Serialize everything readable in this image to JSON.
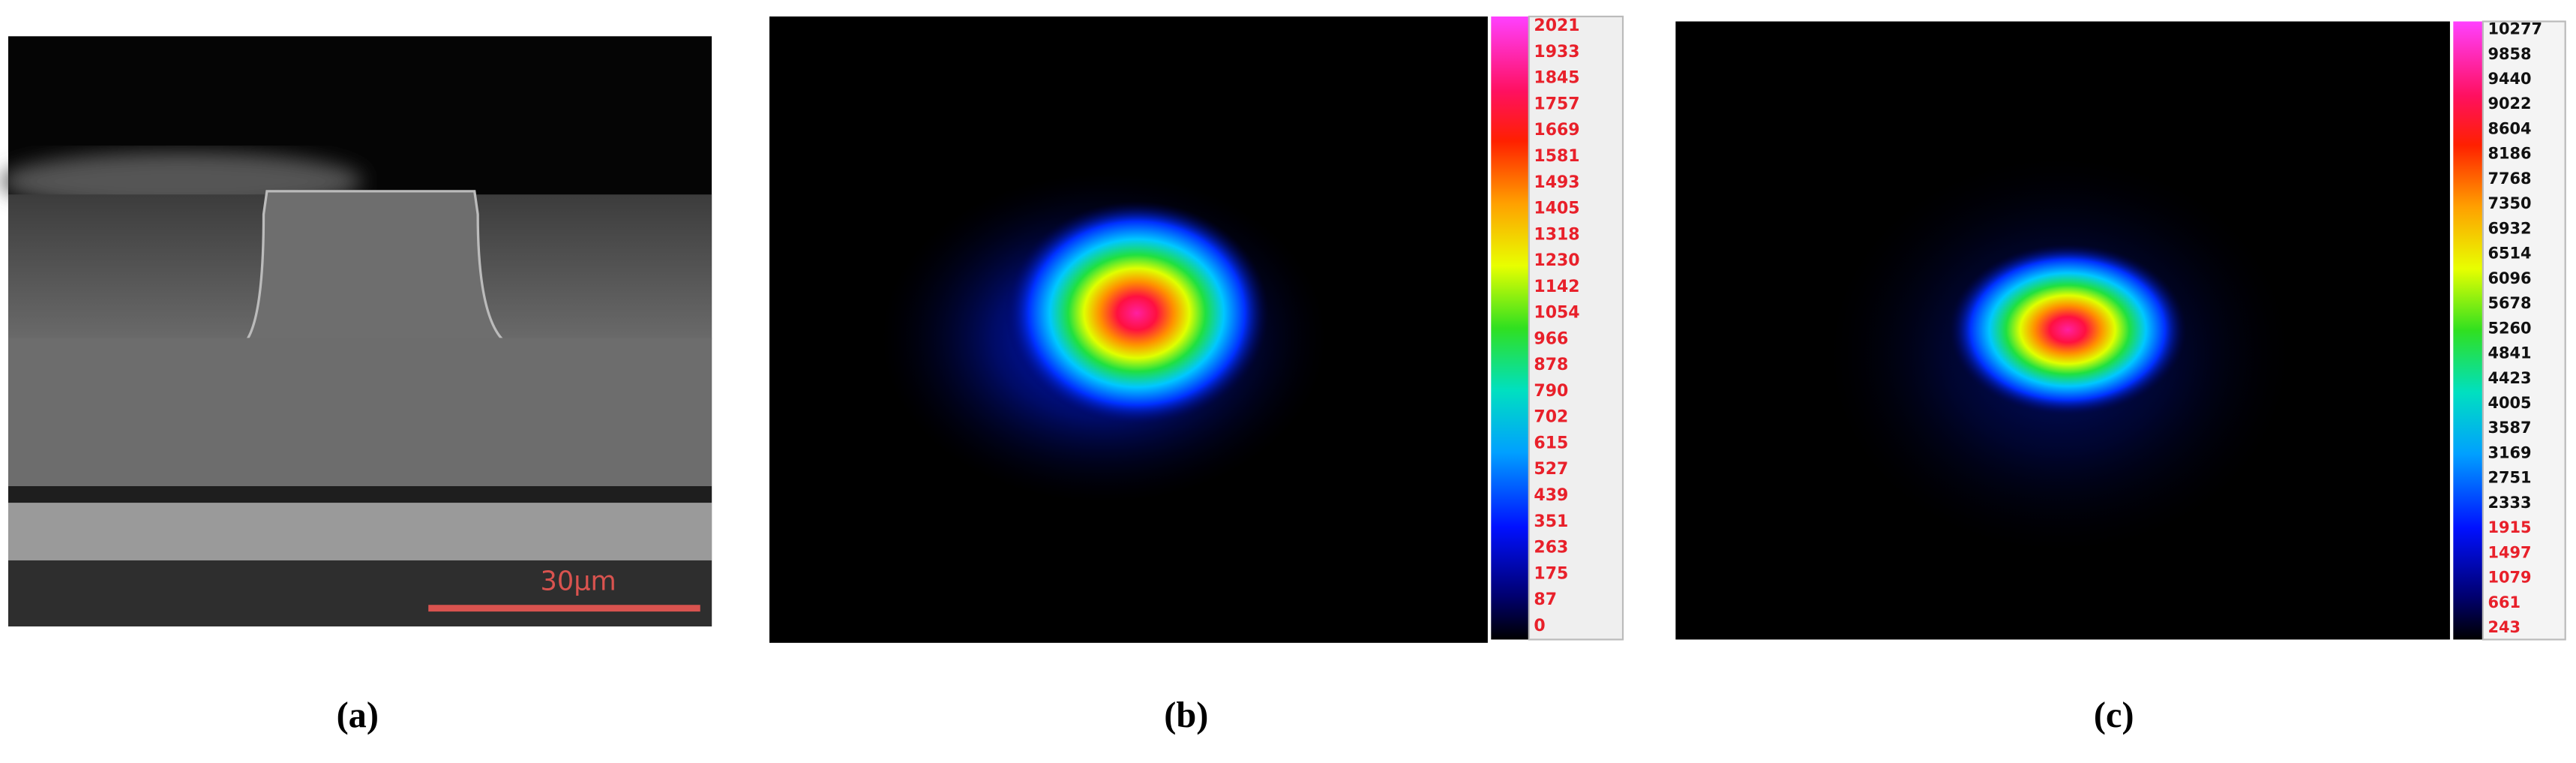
{
  "panels": [
    {
      "label": "(a)",
      "scale_bar": "30μm"
    },
    {
      "label": "(b)",
      "colorbar": [
        2021,
        1933,
        1845,
        1757,
        1669,
        1581,
        1493,
        1405,
        1318,
        1230,
        1142,
        1054,
        966,
        878,
        790,
        702,
        615,
        527,
        439,
        351,
        263,
        175,
        87,
        0
      ]
    },
    {
      "label": "(c)",
      "colorbar": [
        10277,
        9858,
        9440,
        9022,
        8604,
        8186,
        7768,
        7350,
        6932,
        6514,
        6096,
        5678,
        5260,
        4841,
        4423,
        4005,
        3587,
        3169,
        2751,
        2333,
        1915,
        1497,
        1079,
        661,
        243
      ]
    }
  ]
}
